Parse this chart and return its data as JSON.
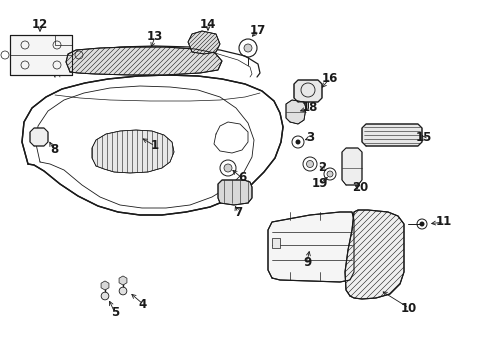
{
  "bg_color": "#ffffff",
  "line_color": "#1a1a1a",
  "fig_width": 4.89,
  "fig_height": 3.6,
  "dpi": 100,
  "label_fontsize": 8.5,
  "label_bold": true
}
